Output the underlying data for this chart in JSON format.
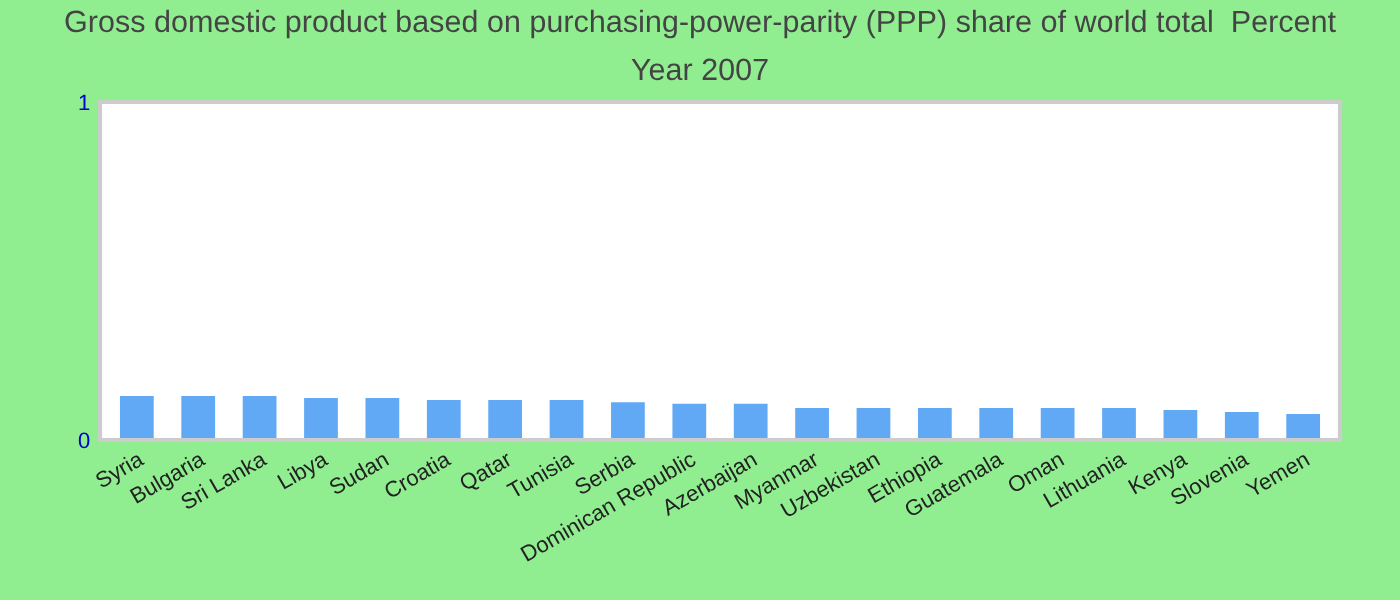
{
  "chart_data": {
    "type": "bar",
    "title": "Gross domestic product based on purchasing-power-parity (PPP) share of world total  Percent",
    "subtitle": "Year 2007",
    "categories": [
      "Syria",
      "Bulgaria",
      "Sri Lanka",
      "Libya",
      "Sudan",
      "Croatia",
      "Qatar",
      "Tunisia",
      "Serbia",
      "Dominican Republic",
      "Azerbaijan",
      "Myanmar",
      "Uzbekistan",
      "Ethiopia",
      "Guatemala",
      "Oman",
      "Lithuania",
      "Kenya",
      "Slovenia",
      "Yemen"
    ],
    "values": [
      0.13,
      0.13,
      0.13,
      0.124,
      0.124,
      0.118,
      0.118,
      0.118,
      0.112,
      0.107,
      0.107,
      0.095,
      0.095,
      0.095,
      0.095,
      0.095,
      0.095,
      0.089,
      0.083,
      0.077
    ],
    "color": "#61a9f5",
    "ylim": [
      0,
      1
    ],
    "yticks": [
      0,
      1
    ]
  }
}
